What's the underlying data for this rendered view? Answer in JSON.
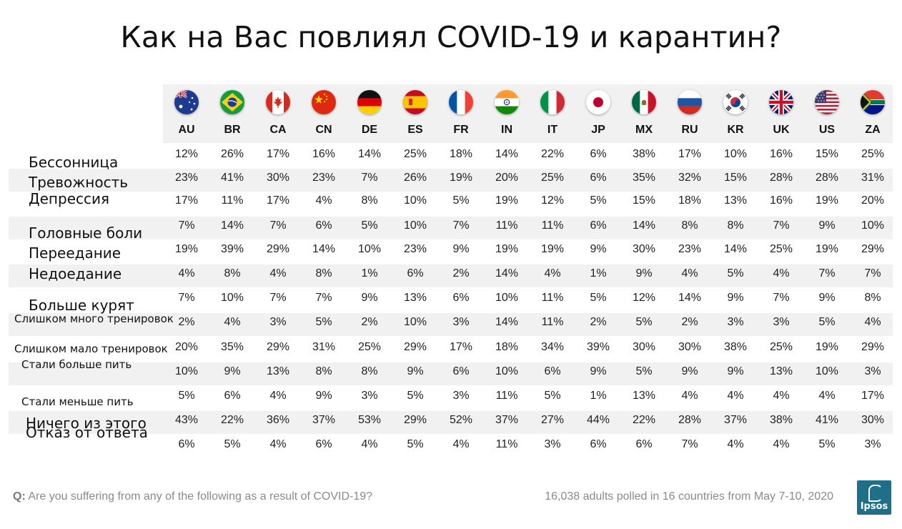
{
  "title": "Как на Вас повлиял COVID-19 и карантин?",
  "footer": {
    "q_prefix": "Q:",
    "question": "Are you suffering from any of the following as a result of COVID-19?",
    "note": "16,038 adults polled in 16 countries from May 7-10, 2020",
    "logo_text": "Ipsos"
  },
  "colors": {
    "band": "#f1f1f1",
    "logo": "#1f6f88"
  },
  "chart_data": {
    "type": "table",
    "columns": [
      {
        "code": "AU",
        "flag": "australia-flag-icon"
      },
      {
        "code": "BR",
        "flag": "brazil-flag-icon"
      },
      {
        "code": "CA",
        "flag": "canada-flag-icon"
      },
      {
        "code": "CN",
        "flag": "china-flag-icon"
      },
      {
        "code": "DE",
        "flag": "germany-flag-icon"
      },
      {
        "code": "ES",
        "flag": "spain-flag-icon"
      },
      {
        "code": "FR",
        "flag": "france-flag-icon"
      },
      {
        "code": "IN",
        "flag": "india-flag-icon"
      },
      {
        "code": "IT",
        "flag": "italy-flag-icon"
      },
      {
        "code": "JP",
        "flag": "japan-flag-icon"
      },
      {
        "code": "MX",
        "flag": "mexico-flag-icon"
      },
      {
        "code": "RU",
        "flag": "russia-flag-icon"
      },
      {
        "code": "KR",
        "flag": "south-korea-flag-icon"
      },
      {
        "code": "UK",
        "flag": "uk-flag-icon"
      },
      {
        "code": "US",
        "flag": "us-flag-icon"
      },
      {
        "code": "ZA",
        "flag": "south-africa-flag-icon"
      }
    ],
    "rows": [
      {
        "label": "Бессонница",
        "values": [
          "12%",
          "26%",
          "17%",
          "16%",
          "14%",
          "25%",
          "18%",
          "14%",
          "22%",
          "6%",
          "38%",
          "17%",
          "10%",
          "16%",
          "15%",
          "25%"
        ]
      },
      {
        "label": "Тревожность",
        "values": [
          "23%",
          "41%",
          "30%",
          "23%",
          "7%",
          "26%",
          "19%",
          "20%",
          "25%",
          "6%",
          "35%",
          "32%",
          "15%",
          "28%",
          "28%",
          "31%"
        ]
      },
      {
        "label": "Депрессия",
        "values": [
          "17%",
          "11%",
          "17%",
          "4%",
          "8%",
          "10%",
          "5%",
          "19%",
          "12%",
          "5%",
          "15%",
          "18%",
          "13%",
          "16%",
          "19%",
          "20%"
        ]
      },
      {
        "label": "Головные боли",
        "values": [
          "7%",
          "14%",
          "7%",
          "6%",
          "5%",
          "10%",
          "7%",
          "11%",
          "11%",
          "6%",
          "14%",
          "8%",
          "8%",
          "7%",
          "9%",
          "10%"
        ]
      },
      {
        "label": "Переедание",
        "values": [
          "19%",
          "39%",
          "29%",
          "14%",
          "10%",
          "23%",
          "9%",
          "19%",
          "19%",
          "9%",
          "30%",
          "23%",
          "14%",
          "25%",
          "19%",
          "29%"
        ]
      },
      {
        "label": "Недоедание",
        "values": [
          "4%",
          "8%",
          "4%",
          "8%",
          "1%",
          "6%",
          "2%",
          "14%",
          "4%",
          "1%",
          "9%",
          "4%",
          "5%",
          "4%",
          "7%",
          "7%"
        ]
      },
      {
        "label": "Больше курят",
        "values": [
          "7%",
          "10%",
          "7%",
          "7%",
          "9%",
          "13%",
          "6%",
          "10%",
          "11%",
          "5%",
          "12%",
          "14%",
          "9%",
          "7%",
          "9%",
          "8%"
        ]
      },
      {
        "label": "Слишком много тренировок",
        "values": [
          "2%",
          "4%",
          "3%",
          "5%",
          "2%",
          "10%",
          "3%",
          "14%",
          "11%",
          "2%",
          "5%",
          "2%",
          "3%",
          "3%",
          "5%",
          "4%"
        ]
      },
      {
        "label": "Слишком мало тренировок",
        "values": [
          "20%",
          "35%",
          "29%",
          "31%",
          "25%",
          "29%",
          "17%",
          "18%",
          "34%",
          "39%",
          "30%",
          "30%",
          "38%",
          "25%",
          "19%",
          "29%"
        ]
      },
      {
        "label": "Стали больше пить",
        "values": [
          "10%",
          "9%",
          "13%",
          "8%",
          "8%",
          "9%",
          "6%",
          "10%",
          "6%",
          "9%",
          "5%",
          "9%",
          "9%",
          "13%",
          "10%",
          "3%"
        ]
      },
      {
        "label": "Стали меньше пить",
        "values": [
          "5%",
          "6%",
          "4%",
          "9%",
          "3%",
          "5%",
          "3%",
          "11%",
          "5%",
          "1%",
          "13%",
          "4%",
          "4%",
          "4%",
          "4%",
          "17%"
        ]
      },
      {
        "label": "Ничего из этого",
        "values": [
          "43%",
          "22%",
          "36%",
          "37%",
          "53%",
          "29%",
          "52%",
          "37%",
          "27%",
          "44%",
          "22%",
          "28%",
          "37%",
          "38%",
          "41%",
          "30%"
        ]
      },
      {
        "label": "Отказ от ответа",
        "values": [
          "6%",
          "5%",
          "4%",
          "6%",
          "4%",
          "5%",
          "4%",
          "11%",
          "3%",
          "6%",
          "6%",
          "7%",
          "4%",
          "4%",
          "5%",
          "3%"
        ]
      }
    ]
  }
}
